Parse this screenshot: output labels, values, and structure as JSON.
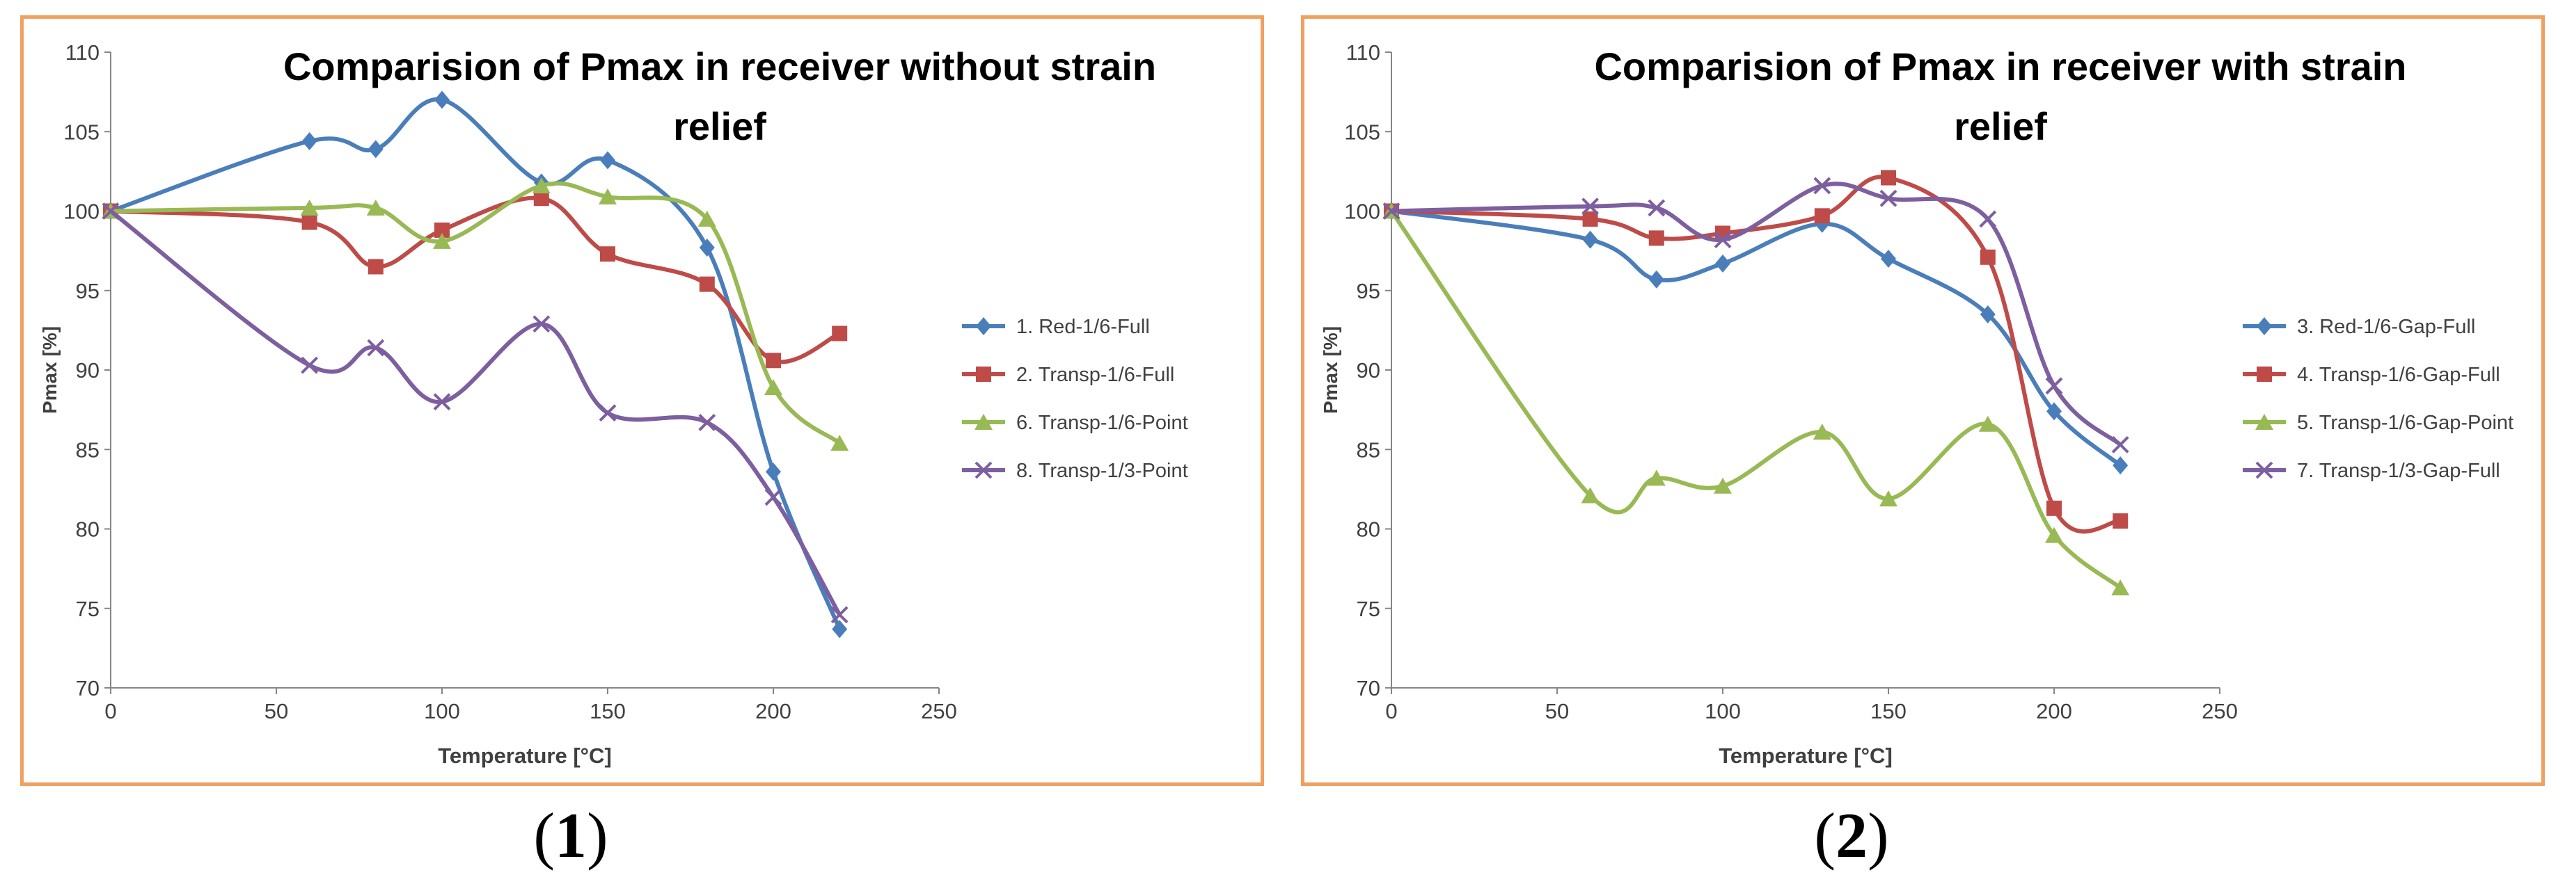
{
  "chart_data": [
    {
      "type": "line",
      "title": "Comparision of Pmax in receiver without strain relief",
      "title_lines": [
        "Comparision of Pmax in receiver without strain",
        "relief"
      ],
      "xlabel": "Temperature [°C]",
      "ylabel": "Pmax [%]",
      "xlim": [
        0,
        250
      ],
      "ylim": [
        70,
        110
      ],
      "xticks": [
        "0",
        "50",
        "100",
        "150",
        "200",
        "250"
      ],
      "yticks": [
        "70",
        "75",
        "80",
        "85",
        "90",
        "95",
        "100",
        "105",
        "110"
      ],
      "legend_position": "right",
      "x": [
        0,
        60,
        80,
        100,
        130,
        150,
        180,
        200,
        220
      ],
      "series": [
        {
          "name": "1. Red-1/6-Full",
          "color": "#4a7ebb",
          "marker": "diamond",
          "values": [
            100,
            104.4,
            103.9,
            107,
            101.8,
            103.2,
            97.7,
            83.6,
            73.7
          ]
        },
        {
          "name": "2. Transp-1/6-Full",
          "color": "#be4b48",
          "marker": "square",
          "values": [
            100,
            99.3,
            96.5,
            98.8,
            100.8,
            97.3,
            95.4,
            90.6,
            92.3
          ]
        },
        {
          "name": "6. Transp-1/6-Point",
          "color": "#98b954",
          "marker": "triangle",
          "values": [
            100,
            100.2,
            100.2,
            98.1,
            101.6,
            100.9,
            99.5,
            88.9,
            85.4
          ]
        },
        {
          "name": "8. Transp-1/3-Point",
          "color": "#7d5fa0",
          "marker": "x",
          "values": [
            100,
            90.3,
            91.4,
            88,
            92.9,
            87.3,
            86.7,
            82,
            74.6
          ]
        }
      ]
    },
    {
      "type": "line",
      "title": "Comparision of Pmax in receiver with strain relief",
      "title_lines": [
        "Comparision of Pmax in receiver with strain",
        "relief"
      ],
      "xlabel": "Temperature [°C]",
      "ylabel": "Pmax [%]",
      "xlim": [
        0,
        250
      ],
      "ylim": [
        70,
        110
      ],
      "xticks": [
        "0",
        "50",
        "100",
        "150",
        "200",
        "250"
      ],
      "yticks": [
        "70",
        "75",
        "80",
        "85",
        "90",
        "95",
        "100",
        "105",
        "110"
      ],
      "legend_position": "right",
      "x": [
        0,
        60,
        80,
        100,
        130,
        150,
        180,
        200,
        220
      ],
      "series": [
        {
          "name": "3. Red-1/6-Gap-Full",
          "color": "#4a7ebb",
          "marker": "diamond",
          "values": [
            100,
            98.2,
            95.7,
            96.7,
            99.2,
            97,
            93.5,
            87.4,
            84
          ]
        },
        {
          "name": "4. Transp-1/6-Gap-Full",
          "color": "#be4b48",
          "marker": "square",
          "values": [
            100,
            99.5,
            98.3,
            98.6,
            99.7,
            102.1,
            97.1,
            81.3,
            80.5
          ]
        },
        {
          "name": "5. Transp-1/6-Gap-Point",
          "color": "#98b954",
          "marker": "triangle",
          "values": [
            100,
            82.1,
            83.2,
            82.7,
            86.1,
            81.9,
            86.6,
            79.6,
            76.3
          ]
        },
        {
          "name": "7. Transp-1/3-Gap-Full",
          "color": "#7d5fa0",
          "marker": "x",
          "values": [
            100,
            100.3,
            100.2,
            98.2,
            101.6,
            100.8,
            99.5,
            89,
            85.3
          ]
        }
      ]
    }
  ],
  "captions": [
    {
      "open": "(",
      "num": "1",
      "close": ")"
    },
    {
      "open": "(",
      "num": "2",
      "close": ")"
    }
  ]
}
